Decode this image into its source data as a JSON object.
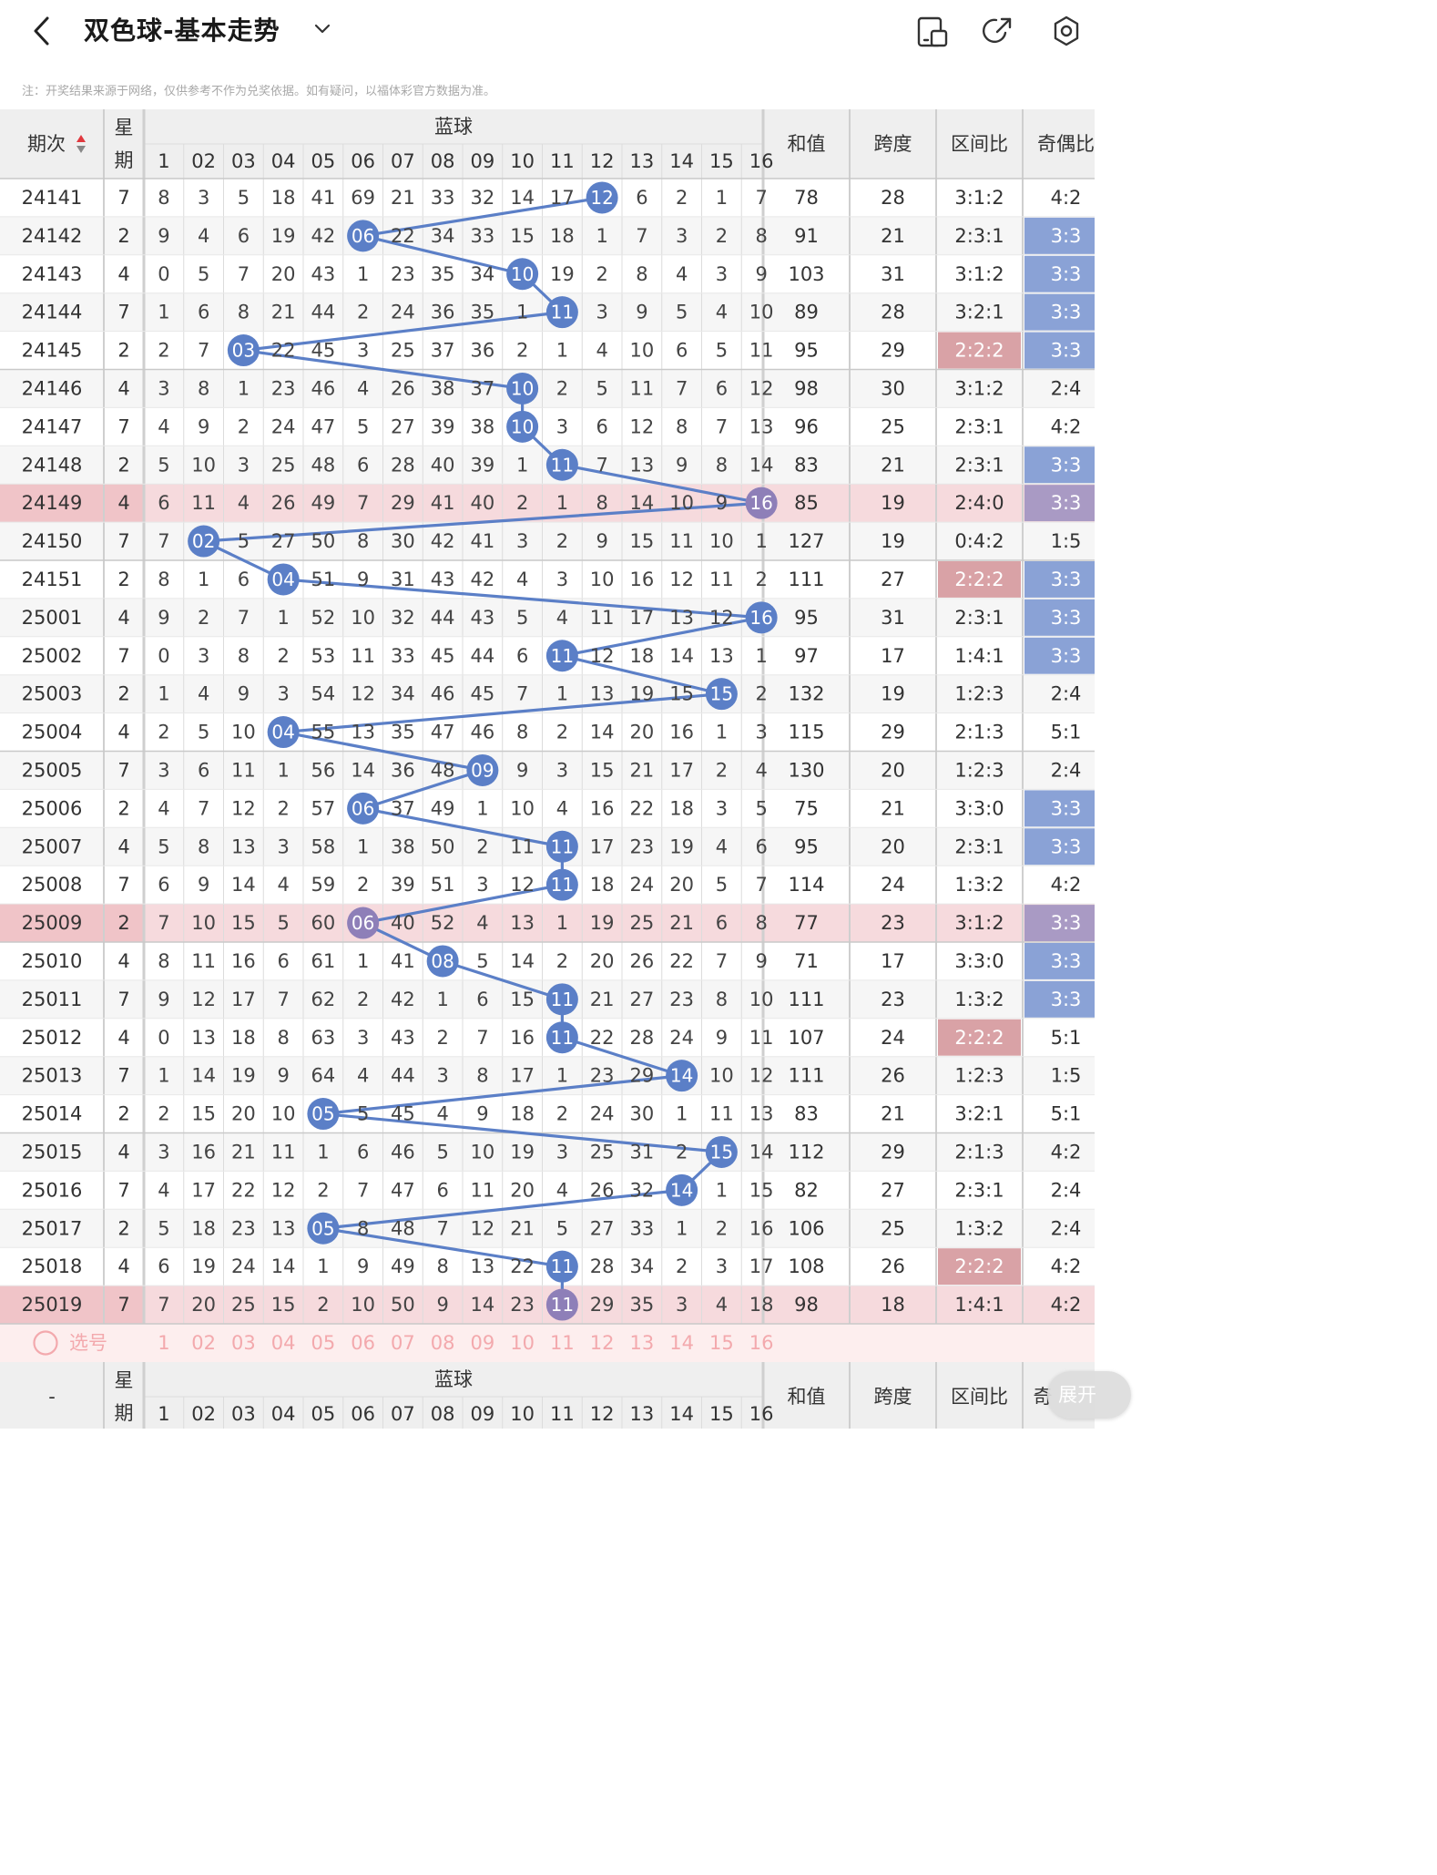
{
  "header": {
    "title": "双色球-基本走势"
  },
  "notice": "注：开奖结果来源于网络，仅供参考不作为兑奖依据。如有疑问，以福体彩官方数据为准。",
  "table_headers": {
    "period": "期次",
    "week": "星期",
    "blue": "蓝球",
    "blue_nums": [
      "1",
      "02",
      "03",
      "04",
      "05",
      "06",
      "07",
      "08",
      "09",
      "10",
      "11",
      "12",
      "13",
      "14",
      "15",
      "16"
    ],
    "sum": "和值",
    "span": "跨度",
    "zone": "区间比",
    "oddeven": "奇偶比"
  },
  "footer_headers": {
    "period": "-",
    "week": "星期",
    "blue": "蓝球",
    "sum": "和值",
    "span": "跨度",
    "zone": "区间比",
    "oddeven": "奇"
  },
  "select_row": {
    "label": "选号",
    "numbers": [
      "1",
      "02",
      "03",
      "04",
      "05",
      "06",
      "07",
      "08",
      "09",
      "10",
      "11",
      "12",
      "13",
      "14",
      "15",
      "16"
    ]
  },
  "expand_button": "展开",
  "rows": [
    {
      "period": "24141",
      "week": "7",
      "blue": 12,
      "cells": [
        "8",
        "3",
        "5",
        "18",
        "41",
        "69",
        "21",
        "33",
        "32",
        "14",
        "17",
        "12",
        "6",
        "2",
        "1",
        "7"
      ],
      "sum": "78",
      "span": "28",
      "zone": "3:1:2",
      "oe": "4:2",
      "hl": false,
      "zone_hl": false,
      "oe_hl": false
    },
    {
      "period": "24142",
      "week": "2",
      "blue": 6,
      "cells": [
        "9",
        "4",
        "6",
        "19",
        "42",
        "06",
        "22",
        "34",
        "33",
        "15",
        "18",
        "1",
        "7",
        "3",
        "2",
        "8"
      ],
      "sum": "91",
      "span": "21",
      "zone": "2:3:1",
      "oe": "3:3",
      "hl": false,
      "zone_hl": false,
      "oe_hl": true
    },
    {
      "period": "24143",
      "week": "4",
      "blue": 10,
      "cells": [
        "0",
        "5",
        "7",
        "20",
        "43",
        "1",
        "23",
        "35",
        "34",
        "10",
        "19",
        "2",
        "8",
        "4",
        "3",
        "9"
      ],
      "sum": "103",
      "span": "31",
      "zone": "3:1:2",
      "oe": "3:3",
      "hl": false,
      "zone_hl": false,
      "oe_hl": true
    },
    {
      "period": "24144",
      "week": "7",
      "blue": 11,
      "cells": [
        "1",
        "6",
        "8",
        "21",
        "44",
        "2",
        "24",
        "36",
        "35",
        "1",
        "11",
        "3",
        "9",
        "5",
        "4",
        "10"
      ],
      "sum": "89",
      "span": "28",
      "zone": "3:2:1",
      "oe": "3:3",
      "hl": false,
      "zone_hl": false,
      "oe_hl": true
    },
    {
      "period": "24145",
      "week": "2",
      "blue": 3,
      "cells": [
        "2",
        "7",
        "03",
        "22",
        "45",
        "3",
        "25",
        "37",
        "36",
        "2",
        "1",
        "4",
        "10",
        "6",
        "5",
        "11"
      ],
      "sum": "95",
      "span": "29",
      "zone": "2:2:2",
      "oe": "3:3",
      "hl": false,
      "zone_hl": true,
      "oe_hl": true
    },
    {
      "period": "24146",
      "week": "4",
      "blue": 10,
      "cells": [
        "3",
        "8",
        "1",
        "23",
        "46",
        "4",
        "26",
        "38",
        "37",
        "10",
        "2",
        "5",
        "11",
        "7",
        "6",
        "12"
      ],
      "sum": "98",
      "span": "30",
      "zone": "3:1:2",
      "oe": "2:4",
      "hl": false,
      "zone_hl": false,
      "oe_hl": false
    },
    {
      "period": "24147",
      "week": "7",
      "blue": 10,
      "cells": [
        "4",
        "9",
        "2",
        "24",
        "47",
        "5",
        "27",
        "39",
        "38",
        "10",
        "3",
        "6",
        "12",
        "8",
        "7",
        "13"
      ],
      "sum": "96",
      "span": "25",
      "zone": "2:3:1",
      "oe": "4:2",
      "hl": false,
      "zone_hl": false,
      "oe_hl": false
    },
    {
      "period": "24148",
      "week": "2",
      "blue": 11,
      "cells": [
        "5",
        "10",
        "3",
        "25",
        "48",
        "6",
        "28",
        "40",
        "39",
        "1",
        "11",
        "7",
        "13",
        "9",
        "8",
        "14"
      ],
      "sum": "83",
      "span": "21",
      "zone": "2:3:1",
      "oe": "3:3",
      "hl": false,
      "zone_hl": false,
      "oe_hl": true
    },
    {
      "period": "24149",
      "week": "4",
      "blue": 16,
      "cells": [
        "6",
        "11",
        "4",
        "26",
        "49",
        "7",
        "29",
        "41",
        "40",
        "2",
        "1",
        "8",
        "14",
        "10",
        "9",
        "16"
      ],
      "sum": "85",
      "span": "19",
      "zone": "2:4:0",
      "oe": "3:3",
      "hl": true,
      "zone_hl": false,
      "oe_hl": true
    },
    {
      "period": "24150",
      "week": "7",
      "blue": 2,
      "cells": [
        "7",
        "02",
        "5",
        "27",
        "50",
        "8",
        "30",
        "42",
        "41",
        "3",
        "2",
        "9",
        "15",
        "11",
        "10",
        "1"
      ],
      "sum": "127",
      "span": "19",
      "zone": "0:4:2",
      "oe": "1:5",
      "hl": false,
      "zone_hl": false,
      "oe_hl": false
    },
    {
      "period": "24151",
      "week": "2",
      "blue": 4,
      "cells": [
        "8",
        "1",
        "6",
        "04",
        "51",
        "9",
        "31",
        "43",
        "42",
        "4",
        "3",
        "10",
        "16",
        "12",
        "11",
        "2"
      ],
      "sum": "111",
      "span": "27",
      "zone": "2:2:2",
      "oe": "3:3",
      "hl": false,
      "zone_hl": true,
      "oe_hl": true
    },
    {
      "period": "25001",
      "week": "4",
      "blue": 16,
      "cells": [
        "9",
        "2",
        "7",
        "1",
        "52",
        "10",
        "32",
        "44",
        "43",
        "5",
        "4",
        "11",
        "17",
        "13",
        "12",
        "16"
      ],
      "sum": "95",
      "span": "31",
      "zone": "2:3:1",
      "oe": "3:3",
      "hl": false,
      "zone_hl": false,
      "oe_hl": true
    },
    {
      "period": "25002",
      "week": "7",
      "blue": 11,
      "cells": [
        "0",
        "3",
        "8",
        "2",
        "53",
        "11",
        "33",
        "45",
        "44",
        "6",
        "11",
        "12",
        "18",
        "14",
        "13",
        "1"
      ],
      "sum": "97",
      "span": "17",
      "zone": "1:4:1",
      "oe": "3:3",
      "hl": false,
      "zone_hl": false,
      "oe_hl": true
    },
    {
      "period": "25003",
      "week": "2",
      "blue": 15,
      "cells": [
        "1",
        "4",
        "9",
        "3",
        "54",
        "12",
        "34",
        "46",
        "45",
        "7",
        "1",
        "13",
        "19",
        "15",
        "15",
        "2"
      ],
      "sum": "132",
      "span": "19",
      "zone": "1:2:3",
      "oe": "2:4",
      "hl": false,
      "zone_hl": false,
      "oe_hl": false
    },
    {
      "period": "25004",
      "week": "4",
      "blue": 4,
      "cells": [
        "2",
        "5",
        "10",
        "04",
        "55",
        "13",
        "35",
        "47",
        "46",
        "8",
        "2",
        "14",
        "20",
        "16",
        "1",
        "3"
      ],
      "sum": "115",
      "span": "29",
      "zone": "2:1:3",
      "oe": "5:1",
      "hl": false,
      "zone_hl": false,
      "oe_hl": false
    },
    {
      "period": "25005",
      "week": "7",
      "blue": 9,
      "cells": [
        "3",
        "6",
        "11",
        "1",
        "56",
        "14",
        "36",
        "48",
        "09",
        "9",
        "3",
        "15",
        "21",
        "17",
        "2",
        "4"
      ],
      "sum": "130",
      "span": "20",
      "zone": "1:2:3",
      "oe": "2:4",
      "hl": false,
      "zone_hl": false,
      "oe_hl": false
    },
    {
      "period": "25006",
      "week": "2",
      "blue": 6,
      "cells": [
        "4",
        "7",
        "12",
        "2",
        "57",
        "06",
        "37",
        "49",
        "1",
        "10",
        "4",
        "16",
        "22",
        "18",
        "3",
        "5"
      ],
      "sum": "75",
      "span": "21",
      "zone": "3:3:0",
      "oe": "3:3",
      "hl": false,
      "zone_hl": false,
      "oe_hl": true
    },
    {
      "period": "25007",
      "week": "4",
      "blue": 11,
      "cells": [
        "5",
        "8",
        "13",
        "3",
        "58",
        "1",
        "38",
        "50",
        "2",
        "11",
        "11",
        "17",
        "23",
        "19",
        "4",
        "6"
      ],
      "sum": "95",
      "span": "20",
      "zone": "2:3:1",
      "oe": "3:3",
      "hl": false,
      "zone_hl": false,
      "oe_hl": true
    },
    {
      "period": "25008",
      "week": "7",
      "blue": 11,
      "cells": [
        "6",
        "9",
        "14",
        "4",
        "59",
        "2",
        "39",
        "51",
        "3",
        "12",
        "11",
        "18",
        "24",
        "20",
        "5",
        "7"
      ],
      "sum": "114",
      "span": "24",
      "zone": "1:3:2",
      "oe": "4:2",
      "hl": false,
      "zone_hl": false,
      "oe_hl": false
    },
    {
      "period": "25009",
      "week": "2",
      "blue": 6,
      "cells": [
        "7",
        "10",
        "15",
        "5",
        "60",
        "06",
        "40",
        "52",
        "4",
        "13",
        "1",
        "19",
        "25",
        "21",
        "6",
        "8"
      ],
      "sum": "77",
      "span": "23",
      "zone": "3:1:2",
      "oe": "3:3",
      "hl": true,
      "zone_hl": false,
      "oe_hl": true
    },
    {
      "period": "25010",
      "week": "4",
      "blue": 8,
      "cells": [
        "8",
        "11",
        "16",
        "6",
        "61",
        "1",
        "41",
        "08",
        "5",
        "14",
        "2",
        "20",
        "26",
        "22",
        "7",
        "9"
      ],
      "sum": "71",
      "span": "17",
      "zone": "3:3:0",
      "oe": "3:3",
      "hl": false,
      "zone_hl": false,
      "oe_hl": true
    },
    {
      "period": "25011",
      "week": "7",
      "blue": 11,
      "cells": [
        "9",
        "12",
        "17",
        "7",
        "62",
        "2",
        "42",
        "1",
        "6",
        "15",
        "11",
        "21",
        "27",
        "23",
        "8",
        "10"
      ],
      "sum": "111",
      "span": "23",
      "zone": "1:3:2",
      "oe": "3:3",
      "hl": false,
      "zone_hl": false,
      "oe_hl": true
    },
    {
      "period": "25012",
      "week": "4",
      "blue": 11,
      "cells": [
        "0",
        "13",
        "18",
        "8",
        "63",
        "3",
        "43",
        "2",
        "7",
        "16",
        "11",
        "22",
        "28",
        "24",
        "9",
        "11"
      ],
      "sum": "107",
      "span": "24",
      "zone": "2:2:2",
      "oe": "5:1",
      "hl": false,
      "zone_hl": true,
      "oe_hl": false
    },
    {
      "period": "25013",
      "week": "7",
      "blue": 14,
      "cells": [
        "1",
        "14",
        "19",
        "9",
        "64",
        "4",
        "44",
        "3",
        "8",
        "17",
        "1",
        "23",
        "29",
        "14",
        "10",
        "12"
      ],
      "sum": "111",
      "span": "26",
      "zone": "1:2:3",
      "oe": "1:5",
      "hl": false,
      "zone_hl": false,
      "oe_hl": false
    },
    {
      "period": "25014",
      "week": "2",
      "blue": 5,
      "cells": [
        "2",
        "15",
        "20",
        "10",
        "05",
        "5",
        "45",
        "4",
        "9",
        "18",
        "2",
        "24",
        "30",
        "1",
        "11",
        "13"
      ],
      "sum": "83",
      "span": "21",
      "zone": "3:2:1",
      "oe": "5:1",
      "hl": false,
      "zone_hl": false,
      "oe_hl": false
    },
    {
      "period": "25015",
      "week": "4",
      "blue": 15,
      "cells": [
        "3",
        "16",
        "21",
        "11",
        "1",
        "6",
        "46",
        "5",
        "10",
        "19",
        "3",
        "25",
        "31",
        "2",
        "15",
        "14"
      ],
      "sum": "112",
      "span": "29",
      "zone": "2:1:3",
      "oe": "4:2",
      "hl": false,
      "zone_hl": false,
      "oe_hl": false
    },
    {
      "period": "25016",
      "week": "7",
      "blue": 14,
      "cells": [
        "4",
        "17",
        "22",
        "12",
        "2",
        "7",
        "47",
        "6",
        "11",
        "20",
        "4",
        "26",
        "32",
        "14",
        "1",
        "15"
      ],
      "sum": "82",
      "span": "27",
      "zone": "2:3:1",
      "oe": "2:4",
      "hl": false,
      "zone_hl": false,
      "oe_hl": false
    },
    {
      "period": "25017",
      "week": "2",
      "blue": 5,
      "cells": [
        "5",
        "18",
        "23",
        "13",
        "05",
        "8",
        "48",
        "7",
        "12",
        "21",
        "5",
        "27",
        "33",
        "1",
        "2",
        "16"
      ],
      "sum": "106",
      "span": "25",
      "zone": "1:3:2",
      "oe": "2:4",
      "hl": false,
      "zone_hl": false,
      "oe_hl": false
    },
    {
      "period": "25018",
      "week": "4",
      "blue": 11,
      "cells": [
        "6",
        "19",
        "24",
        "14",
        "1",
        "9",
        "49",
        "8",
        "13",
        "22",
        "11",
        "28",
        "34",
        "2",
        "3",
        "17"
      ],
      "sum": "108",
      "span": "26",
      "zone": "2:2:2",
      "oe": "4:2",
      "hl": false,
      "zone_hl": true,
      "oe_hl": false
    },
    {
      "period": "25019",
      "week": "7",
      "blue": 11,
      "cells": [
        "7",
        "20",
        "25",
        "15",
        "2",
        "10",
        "50",
        "9",
        "14",
        "23",
        "11",
        "29",
        "35",
        "3",
        "4",
        "18"
      ],
      "sum": "98",
      "span": "18",
      "zone": "1:4:1",
      "oe": "4:2",
      "hl": true,
      "zone_hl": false,
      "oe_hl": false
    }
  ],
  "colors": {
    "ball": "#5b7fc7",
    "ball_highlight": "#8e7fb8",
    "line": "#5b7fc7",
    "row_highlight": "#f6dadd",
    "zone_highlight": "#d9a2a6",
    "oddeven_highlight": "#8aa2d6",
    "oddeven_highlight_row": "#a99ac4",
    "header_bg": "#efefef",
    "select_row_bg": "#fdeeee",
    "select_text": "#f3a9ad"
  }
}
